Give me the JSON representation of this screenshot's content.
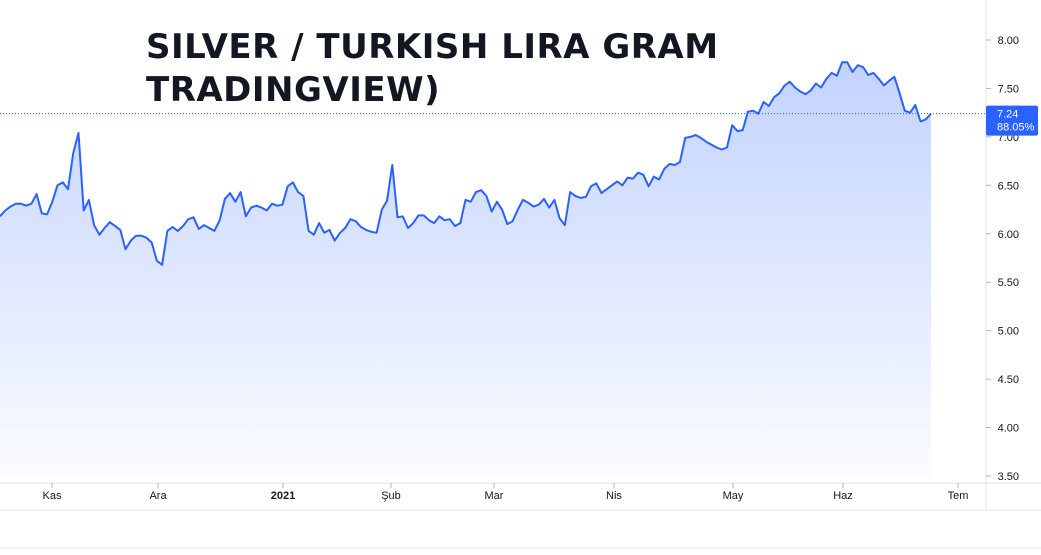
{
  "chart_data": {
    "type": "area",
    "title_lines": [
      "SILVER / TURKISH LIRA GRAM",
      "TRADINGVIEW)"
    ],
    "y_ticks": [
      "8.00",
      "7.50",
      "7.00",
      "6.50",
      "6.00",
      "5.50",
      "5.00",
      "4.50",
      "4.00",
      "3.50"
    ],
    "ylim": [
      3.5,
      8.0
    ],
    "x_ticks": [
      {
        "label": "Kas",
        "bold": false
      },
      {
        "label": "Ara",
        "bold": false
      },
      {
        "label": "2021",
        "bold": true
      },
      {
        "label": "Şub",
        "bold": false
      },
      {
        "label": "Mar",
        "bold": false
      },
      {
        "label": "Nis",
        "bold": false
      },
      {
        "label": "May",
        "bold": false
      },
      {
        "label": "Haz",
        "bold": false
      },
      {
        "label": "Tem",
        "bold": false
      }
    ],
    "last_price_label": "7.24",
    "last_change_label": "88.05%",
    "last_value": 7.24,
    "grid": false,
    "colors": {
      "line": "#2962ff",
      "fill": "#2962ff",
      "badge": "#2962ff",
      "axis_text": "#131722",
      "border": "#e0e3eb"
    },
    "values": [
      6.18,
      6.24,
      6.28,
      6.31,
      6.31,
      6.29,
      6.31,
      6.41,
      6.21,
      6.2,
      6.33,
      6.5,
      6.53,
      6.46,
      6.83,
      7.04,
      6.24,
      6.35,
      6.09,
      5.99,
      6.06,
      6.12,
      6.08,
      6.04,
      5.84,
      5.93,
      5.98,
      5.98,
      5.96,
      5.91,
      5.72,
      5.68,
      6.03,
      6.07,
      6.03,
      6.08,
      6.15,
      6.17,
      6.05,
      6.09,
      6.06,
      6.03,
      6.14,
      6.36,
      6.42,
      6.33,
      6.43,
      6.18,
      6.27,
      6.29,
      6.27,
      6.24,
      6.31,
      6.29,
      6.3,
      6.49,
      6.53,
      6.43,
      6.39,
      6.03,
      5.99,
      6.11,
      6.01,
      6.04,
      5.93,
      6.01,
      6.06,
      6.15,
      6.13,
      6.07,
      6.04,
      6.02,
      6.01,
      6.25,
      6.34,
      6.71,
      6.17,
      6.18,
      6.06,
      6.11,
      6.19,
      6.19,
      6.14,
      6.11,
      6.18,
      6.14,
      6.15,
      6.08,
      6.11,
      6.35,
      6.33,
      6.43,
      6.45,
      6.39,
      6.23,
      6.33,
      6.25,
      6.1,
      6.13,
      6.25,
      6.35,
      6.32,
      6.28,
      6.3,
      6.36,
      6.27,
      6.35,
      6.16,
      6.09,
      6.43,
      6.39,
      6.37,
      6.38,
      6.49,
      6.52,
      6.42,
      6.46,
      6.5,
      6.54,
      6.5,
      6.58,
      6.57,
      6.63,
      6.61,
      6.49,
      6.59,
      6.56,
      6.67,
      6.72,
      6.71,
      6.74,
      6.99,
      7.0,
      7.02,
      6.99,
      6.95,
      6.92,
      6.89,
      6.87,
      6.89,
      7.12,
      7.06,
      7.07,
      7.26,
      7.27,
      7.24,
      7.36,
      7.32,
      7.41,
      7.45,
      7.53,
      7.57,
      7.51,
      7.47,
      7.44,
      7.48,
      7.55,
      7.51,
      7.6,
      7.66,
      7.63,
      7.77,
      7.77,
      7.67,
      7.74,
      7.72,
      7.64,
      7.66,
      7.6,
      7.53,
      7.58,
      7.62,
      7.45,
      7.27,
      7.25,
      7.33,
      7.16,
      7.18,
      7.24
    ]
  }
}
